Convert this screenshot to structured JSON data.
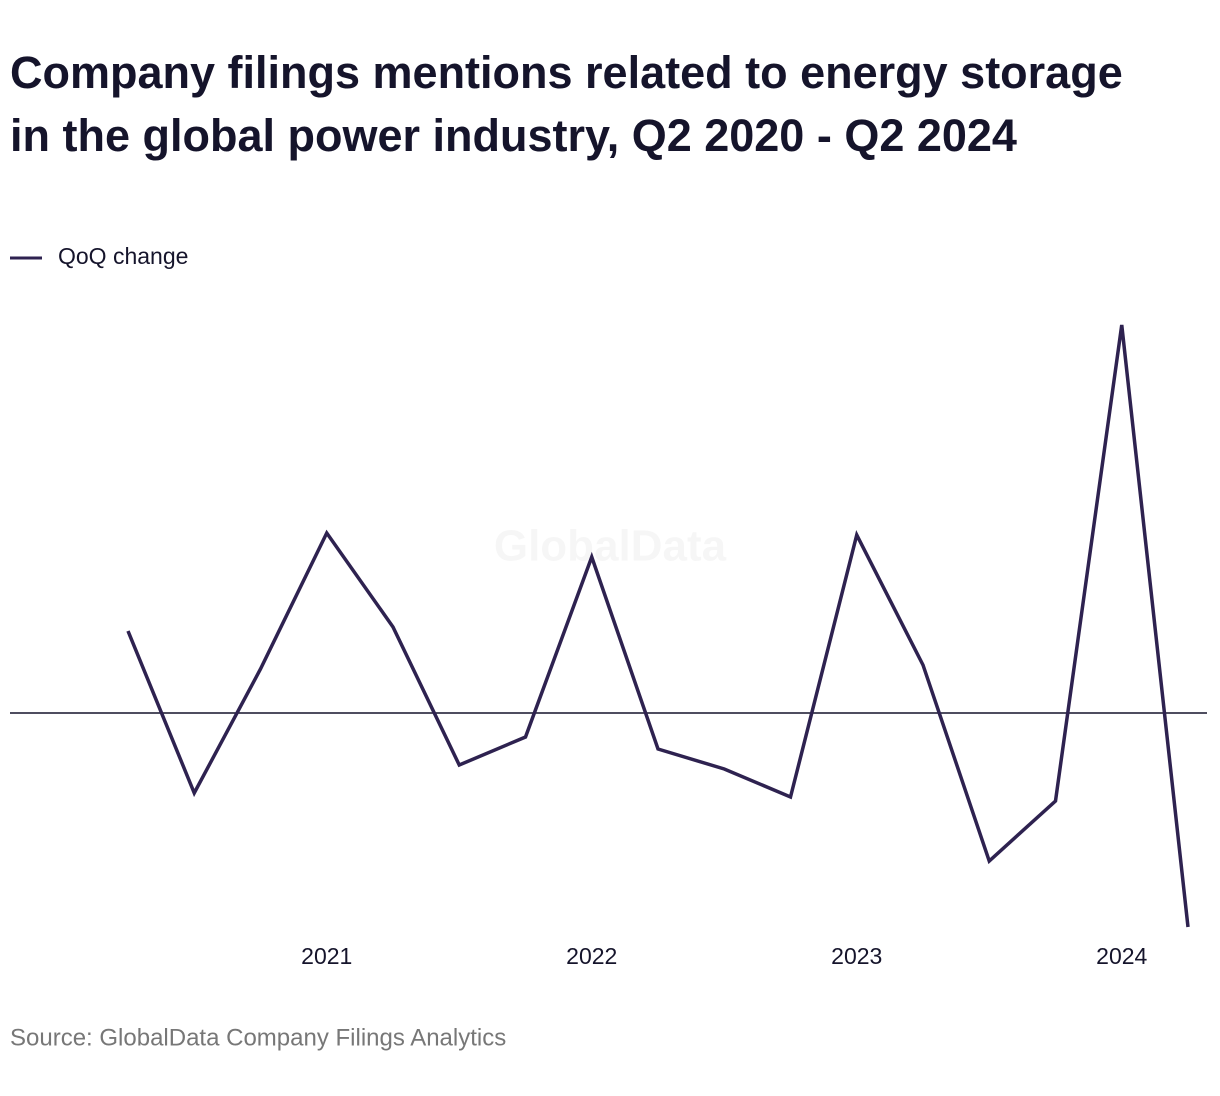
{
  "chart_data": {
    "type": "line",
    "title": [
      "Company filings mentions related to energy storage",
      "in the global power industry, Q2 2020 - Q2 2024"
    ],
    "categories": [
      null,
      null,
      null,
      "2021",
      null,
      null,
      null,
      "2022",
      null,
      null,
      null,
      "2023",
      null,
      null,
      null,
      "2024",
      null
    ],
    "series": [
      {
        "name": "QoQ change",
        "color": "#2e2250",
        "values": [
          20.5,
          -20,
          11,
          45,
          21.5,
          -13,
          -6,
          39,
          -9,
          -14,
          -21,
          44.5,
          12,
          -37,
          -22,
          97,
          -53.5
        ]
      }
    ],
    "ylim": [
      -55,
      100
    ],
    "watermark": "GlobalData",
    "source": "Source: GlobalData Company Filings Analytics"
  }
}
